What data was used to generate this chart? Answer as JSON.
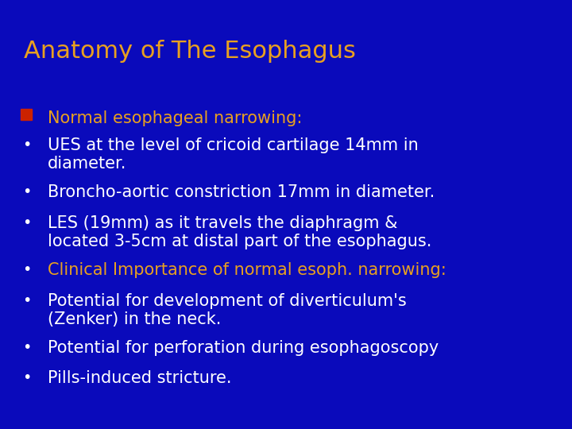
{
  "title": "Anatomy of The Esophagus",
  "title_color": "#E8A020",
  "title_fontsize": 22,
  "bg_color": "#0A0ABB",
  "text_color_white": "#FFFFFF",
  "text_color_orange": "#E8A020",
  "bullet_color_red": "#CC2200",
  "lines": [
    {
      "text": "Normal esophageal narrowing:",
      "color": "#E8A020",
      "type": "square_bullet",
      "fontsize": 15
    },
    {
      "text": "UES at the level of cricoid cartilage 14mm in\ndiameter.",
      "color": "#FFFFFF",
      "type": "bullet",
      "fontsize": 15
    },
    {
      "text": "Broncho-aortic constriction 17mm in diameter.",
      "color": "#FFFFFF",
      "type": "bullet",
      "fontsize": 15
    },
    {
      "text": "LES (19mm) as it travels the diaphragm &\nlocated 3-5cm at distal part of the esophagus.",
      "color": "#FFFFFF",
      "type": "bullet",
      "fontsize": 15
    },
    {
      "text": "Clinical Importance of normal esoph. narrowing:",
      "color": "#E8A020",
      "type": "bullet",
      "fontsize": 15
    },
    {
      "text": "Potential for development of diverticulum's\n(Zenker) in the neck.",
      "color": "#FFFFFF",
      "type": "bullet",
      "fontsize": 15
    },
    {
      "text": "Potential for perforation during esophagoscopy",
      "color": "#FFFFFF",
      "type": "bullet",
      "fontsize": 15
    },
    {
      "text": "Pills-induced stricture.",
      "color": "#FFFFFF",
      "type": "bullet",
      "fontsize": 15
    }
  ]
}
